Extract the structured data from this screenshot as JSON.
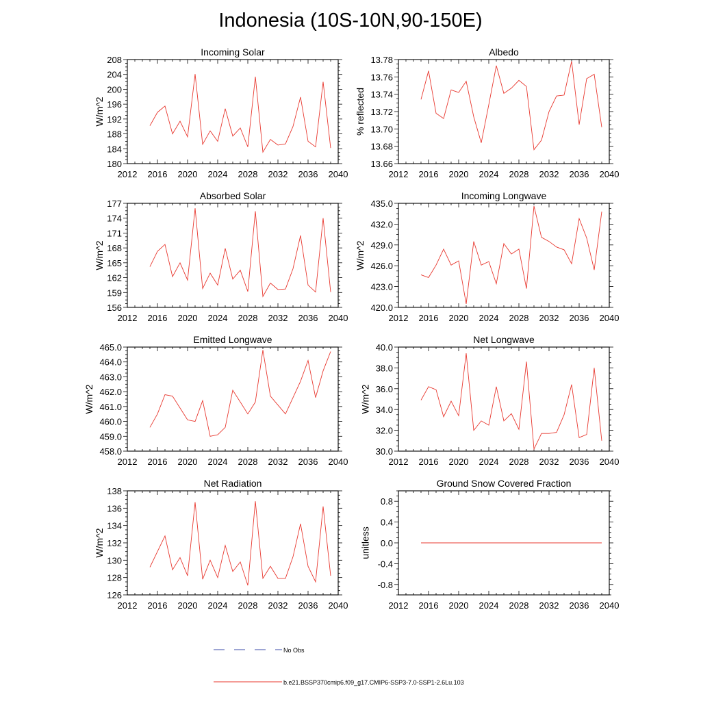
{
  "title": "Indonesia (10S-10N,90-150E)",
  "legend": {
    "items": [
      {
        "label": "No Obs",
        "color": "#3b4ba8",
        "style": "dashed"
      },
      {
        "label": "b.e21.BSSP370cmip6.f09_g17.CMIP6-SSP3-7.0-SSP1-2.6Lu.103",
        "color": "#e8382f",
        "style": "solid"
      }
    ]
  },
  "chart_data": [
    {
      "type": "line",
      "title": "Incoming Solar",
      "ylabel": "W/m^2",
      "xlim": [
        2012,
        2040
      ],
      "xticks": [
        "2012",
        "2016",
        "2020",
        "2024",
        "2028",
        "2032",
        "2036",
        "2040"
      ],
      "ylim": [
        180,
        208
      ],
      "yticks": [
        "180",
        "184",
        "188",
        "192",
        "196",
        "200",
        "204",
        "208"
      ],
      "ytick_side": "left",
      "x": [
        2015,
        2016,
        2017,
        2018,
        2019,
        2020,
        2021,
        2022,
        2023,
        2024,
        2025,
        2026,
        2027,
        2028,
        2029,
        2030,
        2031,
        2032,
        2033,
        2034,
        2035,
        2036,
        2037,
        2038,
        2039
      ],
      "series": [
        {
          "color": "#e8382f",
          "values": [
            190.2,
            193.8,
            195.5,
            188.0,
            191.4,
            187.2,
            204.1,
            185.2,
            188.8,
            186.0,
            194.8,
            187.4,
            189.6,
            184.5,
            203.4,
            183.1,
            186.5,
            185.0,
            185.3,
            190.0,
            197.9,
            186.0,
            184.5,
            202.0,
            184.2
          ]
        }
      ]
    },
    {
      "type": "line",
      "title": "Albedo",
      "ylabel": "% reflected",
      "xlim": [
        2012,
        2040
      ],
      "xticks": [
        "2012",
        "2016",
        "2020",
        "2024",
        "2028",
        "2032",
        "2036",
        "2040"
      ],
      "ylim": [
        13.66,
        13.78
      ],
      "yticks": [
        "13.66",
        "13.68",
        "13.70",
        "13.72",
        "13.74",
        "13.76",
        "13.78"
      ],
      "ytick_side": "left",
      "x": [
        2015,
        2016,
        2017,
        2018,
        2019,
        2020,
        2021,
        2022,
        2023,
        2024,
        2025,
        2026,
        2027,
        2028,
        2029,
        2030,
        2031,
        2032,
        2033,
        2034,
        2035,
        2036,
        2037,
        2038,
        2039
      ],
      "series": [
        {
          "color": "#e8382f",
          "values": [
            13.734,
            13.767,
            13.718,
            13.712,
            13.745,
            13.742,
            13.755,
            13.714,
            13.684,
            13.728,
            13.773,
            13.741,
            13.747,
            13.756,
            13.749,
            13.676,
            13.687,
            13.72,
            13.738,
            13.739,
            13.778,
            13.705,
            13.758,
            13.763,
            13.702
          ]
        }
      ]
    },
    {
      "type": "line",
      "title": "Absorbed Solar",
      "ylabel": "W/m^2",
      "xlim": [
        2012,
        2040
      ],
      "xticks": [
        "2012",
        "2016",
        "2020",
        "2024",
        "2028",
        "2032",
        "2036",
        "2040"
      ],
      "ylim": [
        156,
        177
      ],
      "yticks": [
        "156",
        "159",
        "162",
        "165",
        "168",
        "171",
        "174",
        "177"
      ],
      "ytick_side": "left",
      "x": [
        2015,
        2016,
        2017,
        2018,
        2019,
        2020,
        2021,
        2022,
        2023,
        2024,
        2025,
        2026,
        2027,
        2028,
        2029,
        2030,
        2031,
        2032,
        2033,
        2034,
        2035,
        2036,
        2037,
        2038,
        2039
      ],
      "series": [
        {
          "color": "#e8382f",
          "values": [
            164.2,
            167.3,
            168.7,
            162.2,
            165.0,
            161.5,
            176.0,
            159.8,
            162.9,
            160.5,
            167.9,
            161.7,
            163.5,
            159.2,
            175.4,
            158.2,
            160.9,
            159.6,
            159.7,
            163.8,
            170.5,
            160.5,
            159.1,
            174.0,
            159.1
          ]
        }
      ]
    },
    {
      "type": "line",
      "title": "Incoming Longwave",
      "ylabel": "W/m^2",
      "xlim": [
        2012,
        2040
      ],
      "xticks": [
        "2012",
        "2016",
        "2020",
        "2024",
        "2028",
        "2032",
        "2036",
        "2040"
      ],
      "ylim": [
        420.0,
        435.0
      ],
      "yticks": [
        "420.0",
        "423.0",
        "426.0",
        "429.0",
        "432.0",
        "435.0"
      ],
      "ytick_side": "left",
      "x": [
        2015,
        2016,
        2017,
        2018,
        2019,
        2020,
        2021,
        2022,
        2023,
        2024,
        2025,
        2026,
        2027,
        2028,
        2029,
        2030,
        2031,
        2032,
        2033,
        2034,
        2035,
        2036,
        2037,
        2038,
        2039
      ],
      "series": [
        {
          "color": "#e8382f",
          "values": [
            424.7,
            424.3,
            426.1,
            428.4,
            426.1,
            426.7,
            420.5,
            429.5,
            426.1,
            426.6,
            423.4,
            429.2,
            427.7,
            428.4,
            422.7,
            434.6,
            430.1,
            429.5,
            428.7,
            428.3,
            426.3,
            432.8,
            430.0,
            425.4,
            433.8
          ]
        }
      ]
    },
    {
      "type": "line",
      "title": "Emitted Longwave",
      "ylabel": "W/m^2",
      "xlim": [
        2012,
        2040
      ],
      "xticks": [
        "2012",
        "2016",
        "2020",
        "2024",
        "2028",
        "2032",
        "2036",
        "2040"
      ],
      "ylim": [
        458.0,
        465.0
      ],
      "yticks": [
        "458.0",
        "459.0",
        "460.0",
        "461.0",
        "462.0",
        "463.0",
        "464.0",
        "465.0"
      ],
      "ytick_side": "left",
      "x": [
        2015,
        2016,
        2017,
        2018,
        2019,
        2020,
        2021,
        2022,
        2023,
        2024,
        2025,
        2026,
        2027,
        2028,
        2029,
        2030,
        2031,
        2032,
        2033,
        2034,
        2035,
        2036,
        2037,
        2038,
        2039
      ],
      "series": [
        {
          "color": "#e8382f",
          "values": [
            459.6,
            460.5,
            461.8,
            461.7,
            460.9,
            460.1,
            460.0,
            461.4,
            459.0,
            459.1,
            459.6,
            462.1,
            461.3,
            460.5,
            461.3,
            464.8,
            461.7,
            461.1,
            460.5,
            461.6,
            462.7,
            464.1,
            461.6,
            463.4,
            464.7
          ]
        }
      ]
    },
    {
      "type": "line",
      "title": "Net Longwave",
      "ylabel": "W/m^2",
      "xlim": [
        2012,
        2040
      ],
      "xticks": [
        "2012",
        "2016",
        "2020",
        "2024",
        "2028",
        "2032",
        "2036",
        "2040"
      ],
      "ylim": [
        30.0,
        40.0
      ],
      "yticks": [
        "30.0",
        "32.0",
        "34.0",
        "36.0",
        "38.0",
        "40.0"
      ],
      "ytick_side": "left",
      "x": [
        2015,
        2016,
        2017,
        2018,
        2019,
        2020,
        2021,
        2022,
        2023,
        2024,
        2025,
        2026,
        2027,
        2028,
        2029,
        2030,
        2031,
        2032,
        2033,
        2034,
        2035,
        2036,
        2037,
        2038,
        2039
      ],
      "series": [
        {
          "color": "#e8382f",
          "values": [
            34.9,
            36.2,
            35.9,
            33.3,
            34.8,
            33.4,
            39.4,
            32.0,
            32.9,
            32.5,
            36.2,
            32.9,
            33.6,
            32.1,
            38.6,
            30.2,
            31.7,
            31.7,
            31.8,
            33.5,
            36.4,
            31.3,
            31.6,
            38.0,
            31.0
          ]
        }
      ]
    },
    {
      "type": "line",
      "title": "Net Radiation",
      "ylabel": "W/m^2",
      "xlim": [
        2012,
        2040
      ],
      "xticks": [
        "2012",
        "2016",
        "2020",
        "2024",
        "2028",
        "2032",
        "2036",
        "2040"
      ],
      "ylim": [
        126,
        138
      ],
      "yticks": [
        "126",
        "128",
        "130",
        "132",
        "134",
        "136",
        "138"
      ],
      "ytick_side": "left",
      "x": [
        2015,
        2016,
        2017,
        2018,
        2019,
        2020,
        2021,
        2022,
        2023,
        2024,
        2025,
        2026,
        2027,
        2028,
        2029,
        2030,
        2031,
        2032,
        2033,
        2034,
        2035,
        2036,
        2037,
        2038,
        2039
      ],
      "series": [
        {
          "color": "#e8382f",
          "values": [
            129.2,
            131.0,
            132.8,
            128.9,
            130.3,
            128.2,
            136.7,
            127.8,
            130.0,
            128.0,
            131.7,
            128.7,
            129.8,
            127.1,
            136.8,
            127.9,
            129.3,
            127.9,
            127.9,
            130.4,
            134.2,
            129.3,
            127.5,
            136.2,
            128.2
          ]
        }
      ]
    },
    {
      "type": "line",
      "title": "Ground Snow Covered Fraction",
      "ylabel": "unitless",
      "xlim": [
        2012,
        2040
      ],
      "xticks": [
        "2012",
        "2016",
        "2020",
        "2024",
        "2028",
        "2032",
        "2036",
        "2040"
      ],
      "ylim": [
        -1.0,
        1.0
      ],
      "yticks": [
        "-0.8",
        "-0.4",
        "0.0",
        "0.4",
        "0.8"
      ],
      "ytick_values": [
        -0.8,
        -0.4,
        0.0,
        0.4,
        0.8
      ],
      "ytick_side": "left",
      "x": [
        2015,
        2016,
        2017,
        2018,
        2019,
        2020,
        2021,
        2022,
        2023,
        2024,
        2025,
        2026,
        2027,
        2028,
        2029,
        2030,
        2031,
        2032,
        2033,
        2034,
        2035,
        2036,
        2037,
        2038,
        2039
      ],
      "series": [
        {
          "color": "#e8382f",
          "values": [
            0,
            0,
            0,
            0,
            0,
            0,
            0,
            0,
            0,
            0,
            0,
            0,
            0,
            0,
            0,
            0,
            0,
            0,
            0,
            0,
            0,
            0,
            0,
            0,
            0
          ]
        }
      ]
    }
  ]
}
